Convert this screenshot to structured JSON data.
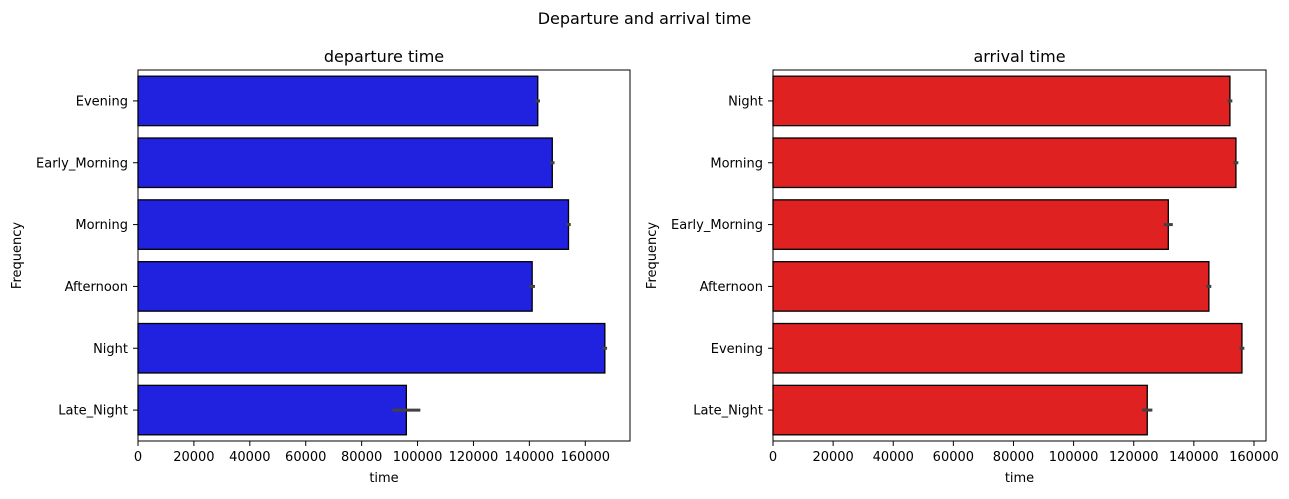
{
  "figure": {
    "suptitle": "Departure and arrival time"
  },
  "chart_data": [
    {
      "type": "bar",
      "orientation": "horizontal",
      "title": "departure time",
      "xlabel": "time",
      "ylabel": "Frequency",
      "xlim": [
        0,
        176000
      ],
      "xticks": [
        0,
        20000,
        40000,
        60000,
        80000,
        100000,
        120000,
        140000,
        160000
      ],
      "bar_color": "#2121e0",
      "categories": [
        "Evening",
        "Early_Morning",
        "Morning",
        "Afternoon",
        "Night",
        "Late_Night"
      ],
      "values": [
        143000,
        148200,
        154000,
        141000,
        167000,
        96000
      ],
      "error_low": [
        142200,
        147400,
        153200,
        140000,
        166200,
        91000
      ],
      "error_high": [
        143800,
        149000,
        154800,
        142000,
        167800,
        101000
      ]
    },
    {
      "type": "bar",
      "orientation": "horizontal",
      "title": "arrival time",
      "xlabel": "time",
      "ylabel": "Frequency",
      "xlim": [
        0,
        164000
      ],
      "xticks": [
        0,
        20000,
        40000,
        60000,
        80000,
        100000,
        120000,
        140000,
        160000
      ],
      "bar_color": "#e02121",
      "categories": [
        "Night",
        "Morning",
        "Early_Morning",
        "Afternoon",
        "Evening",
        "Late_Night"
      ],
      "values": [
        152000,
        154000,
        131500,
        145000,
        156000,
        124500
      ],
      "error_low": [
        151200,
        153200,
        130000,
        144200,
        155200,
        122800
      ],
      "error_high": [
        152800,
        154800,
        133000,
        145800,
        156800,
        126200
      ]
    }
  ]
}
